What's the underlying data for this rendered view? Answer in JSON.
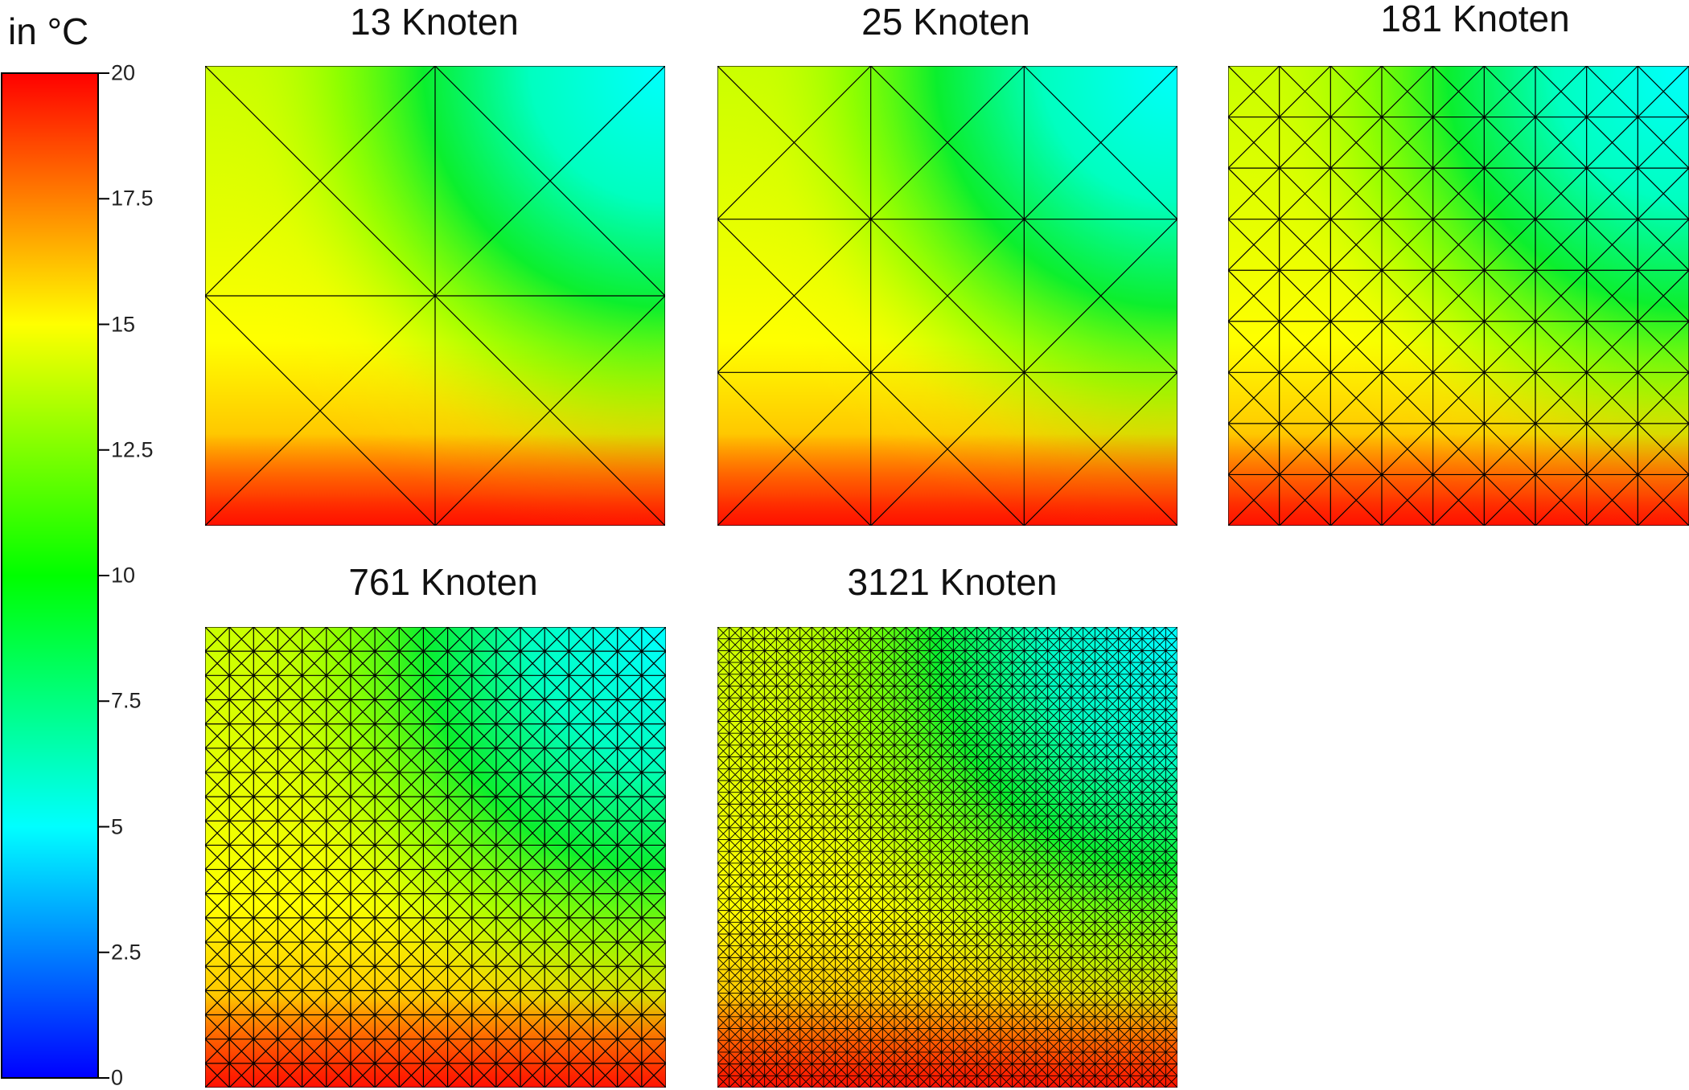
{
  "colorbar": {
    "title": "in °C",
    "ticks": [
      "20",
      "17.5",
      "15",
      "12.5",
      "10",
      "7.5",
      "5",
      "2.5",
      "0"
    ],
    "tick_values": [
      20,
      17.5,
      15,
      12.5,
      10,
      7.5,
      5,
      2.5,
      0
    ],
    "range": [
      0,
      20
    ],
    "colors": [
      "#0000ff",
      "#00ffff",
      "#00ff00",
      "#ffff00",
      "#ff0000"
    ]
  },
  "panels": [
    {
      "title": "13 Knoten",
      "divisions": 2
    },
    {
      "title": "25 Knoten",
      "divisions": 3
    },
    {
      "title": "181 Knoten",
      "divisions": 9
    },
    {
      "title": "761 Knoten",
      "divisions": 19
    },
    {
      "title": "3121 Knoten",
      "divisions": 39
    }
  ]
}
